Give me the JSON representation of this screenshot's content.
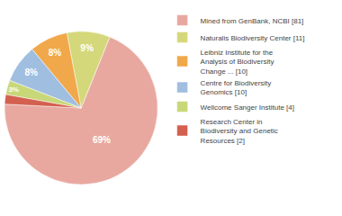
{
  "chart_data": {
    "type": "pie",
    "categories": [
      "Mined from GenBank, NCBI [81]",
      "Naturalis Biodiversity Center [11]",
      "Leibniz Institute for the\nAnalysis of Biodiversity\nChange ... [10]",
      "Centre for Biodiversity\nGenomics [10]",
      "Wellcome Sanger Institute [4]",
      "Research Center in\nBiodiversity and Genetic\nResources [2]"
    ],
    "values": [
      69,
      9,
      8,
      8,
      3,
      2
    ],
    "value_labels": [
      "69%",
      "9%",
      "8%",
      "8%",
      "3%",
      null
    ],
    "colors": [
      "#e8a8a0",
      "#d4d87a",
      "#f0a84a",
      "#a0bee0",
      "#c8d878",
      "#d46050"
    ],
    "data_labels": true,
    "legend": "right"
  }
}
